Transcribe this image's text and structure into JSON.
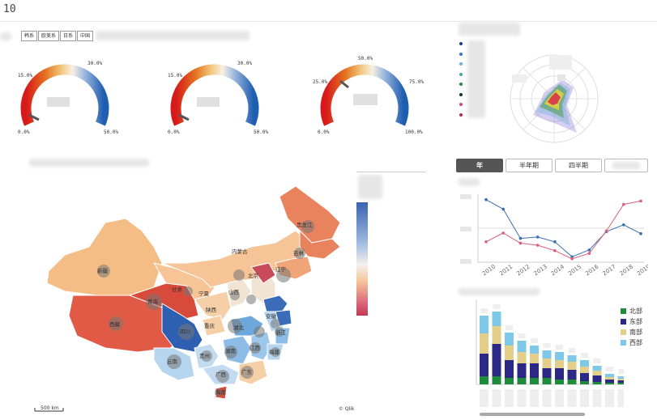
{
  "header": {
    "value": "10"
  },
  "filters": [
    "韩系",
    "欧美系",
    "日系",
    "中国"
  ],
  "gauges": [
    {
      "min": "0.0%",
      "mid": "15.0%",
      "high": "30.0%",
      "max": "50.0%"
    },
    {
      "min": "0.0%",
      "mid": "15.0%",
      "high": "30.0%",
      "max": "50.0%"
    },
    {
      "min": "0.0%",
      "mid": "25.0%",
      "high": "50.0%",
      "upper": "75.0%",
      "max": "100.0%"
    }
  ],
  "map": {
    "provinces": [
      "新疆",
      "西藏",
      "青海",
      "甘肃",
      "内蒙古",
      "黑龙江",
      "吉林",
      "辽宁",
      "北京",
      "山西",
      "宁夏",
      "陕西",
      "四川",
      "云南",
      "贵州",
      "广西",
      "湖北",
      "湖南",
      "江西",
      "安徽",
      "浙江",
      "福建",
      "广东",
      "海南",
      "重庆"
    ],
    "scale": "500 km",
    "credit": "© Qlik"
  },
  "tabs": [
    "年",
    "半年期",
    "四半期"
  ],
  "line_chart": {
    "chart_data": {
      "type": "line",
      "categories": [
        "2010",
        "2011",
        "2012",
        "2013",
        "2014",
        "2015",
        "2016",
        "2017",
        "2018",
        "2019"
      ],
      "series": [
        {
          "color": "#3a6fb0",
          "values": [
            0.92,
            0.78,
            0.35,
            0.37,
            0.3,
            0.08,
            0.18,
            0.45,
            0.55,
            0.42
          ]
        },
        {
          "color": "#d9607a",
          "values": [
            0.3,
            0.43,
            0.28,
            0.25,
            0.17,
            0.05,
            0.13,
            0.46,
            0.85,
            0.9
          ]
        }
      ]
    }
  },
  "bar_chart": {
    "legend": [
      {
        "label": "北部",
        "color": "#1e8c3a"
      },
      {
        "label": "东部",
        "color": "#2b2985"
      },
      {
        "label": "南部",
        "color": "#e3cf8a"
      },
      {
        "label": "西部",
        "color": "#7ec8e8"
      }
    ],
    "chart_data": {
      "type": "bar",
      "stacked": true,
      "categories_count": 12,
      "series": [
        {
          "name": "北部",
          "values": [
            10,
            10,
            8,
            8,
            8,
            8,
            6,
            6,
            4,
            3,
            2,
            2
          ]
        },
        {
          "name": "东部",
          "values": [
            28,
            40,
            22,
            18,
            18,
            12,
            14,
            12,
            10,
            8,
            4,
            3
          ]
        },
        {
          "name": "南部",
          "values": [
            25,
            22,
            18,
            14,
            12,
            12,
            10,
            10,
            8,
            6,
            3,
            2
          ]
        },
        {
          "name": "西部",
          "values": [
            22,
            18,
            16,
            14,
            10,
            10,
            10,
            8,
            8,
            6,
            4,
            3
          ]
        }
      ]
    }
  }
}
